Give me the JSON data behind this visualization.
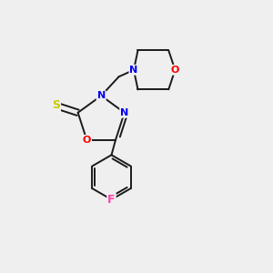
{
  "background_color": "#efefef",
  "bond_color": "#1a1a1a",
  "atom_colors": {
    "S": "#cccc00",
    "O": "#ff0000",
    "N": "#0000ee",
    "F": "#ff44aa",
    "C": "#1a1a1a"
  },
  "figsize": [
    3.0,
    3.0
  ],
  "dpi": 100,
  "lw": 1.4,
  "fontsize": 9
}
